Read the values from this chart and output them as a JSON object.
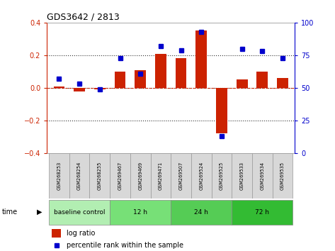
{
  "title": "GDS3642 / 2813",
  "samples": [
    "GSM268253",
    "GSM268254",
    "GSM268255",
    "GSM269467",
    "GSM269469",
    "GSM269471",
    "GSM269507",
    "GSM269524",
    "GSM269525",
    "GSM269533",
    "GSM269534",
    "GSM269535"
  ],
  "log_ratio": [
    0.01,
    -0.02,
    -0.01,
    0.1,
    0.11,
    0.21,
    0.18,
    0.35,
    -0.28,
    0.05,
    0.1,
    0.06
  ],
  "percentile_rank": [
    57,
    53,
    49,
    73,
    61,
    82,
    79,
    93,
    13,
    80,
    78,
    73
  ],
  "groups": [
    {
      "label": "baseline control",
      "start": 0,
      "end": 3,
      "color": "#b2eeb2"
    },
    {
      "label": "12 h",
      "start": 3,
      "end": 6,
      "color": "#77e077"
    },
    {
      "label": "24 h",
      "start": 6,
      "end": 9,
      "color": "#55cc55"
    },
    {
      "label": "72 h",
      "start": 9,
      "end": 12,
      "color": "#33bb33"
    }
  ],
  "bar_color": "#cc2200",
  "dot_color": "#0000cc",
  "ylim_left": [
    -0.4,
    0.4
  ],
  "ylim_right": [
    0,
    100
  ],
  "yticks_left": [
    -0.4,
    -0.2,
    0.0,
    0.2,
    0.4
  ],
  "yticks_right": [
    0,
    25,
    50,
    75,
    100
  ],
  "dotted_lines": [
    -0.2,
    0.0,
    0.2
  ],
  "background_color": "#ffffff",
  "time_label": "time",
  "legend_log_ratio": "log ratio",
  "legend_percentile": "percentile rank within the sample",
  "sample_cell_color": "#d8d8d8",
  "sample_cell_edge": "#999999"
}
